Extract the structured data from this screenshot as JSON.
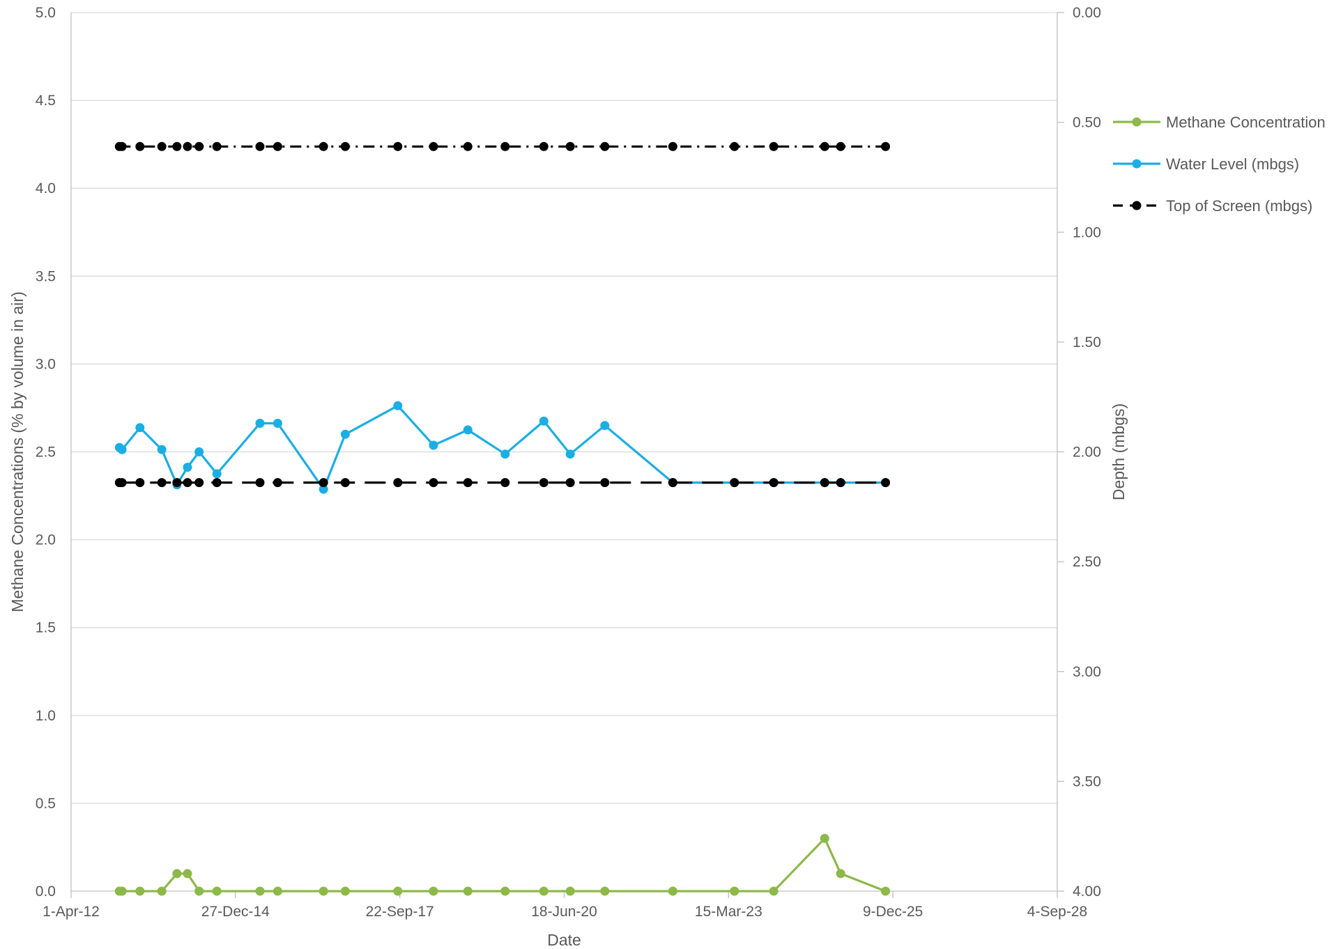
{
  "chart_data": {
    "type": "line",
    "x_axis": {
      "label": "Date",
      "ticks": [
        "1-Apr-12",
        "27-Dec-14",
        "22-Sep-17",
        "18-Jun-20",
        "15-Mar-23",
        "9-Dec-25",
        "4-Sep-28"
      ],
      "range": [
        "2012-04-01",
        "2028-09-04"
      ]
    },
    "y_axis_left": {
      "label": "Methane Concentrations (% by volume in air)",
      "ticks": [
        "0.0",
        "0.5",
        "1.0",
        "1.5",
        "2.0",
        "2.5",
        "3.0",
        "3.5",
        "4.0",
        "4.5",
        "5.0"
      ],
      "range": [
        0,
        5
      ]
    },
    "y_axis_right": {
      "label": "Depth (mbgs)",
      "ticks": [
        "0.00",
        "0.50",
        "1.00",
        "1.50",
        "2.00",
        "2.50",
        "3.00",
        "3.50",
        "4.00"
      ],
      "range": [
        0,
        4
      ],
      "inverted": true
    },
    "grid": true,
    "legend_position": "right",
    "series": [
      {
        "name": "Methane Concentration",
        "axis": "left",
        "color": "#8db84a",
        "style": "solid",
        "points": [
          [
            "2013-01-20",
            0
          ],
          [
            "2013-02-05",
            0
          ],
          [
            "2013-05-25",
            0
          ],
          [
            "2013-10-05",
            0
          ],
          [
            "2014-01-05",
            0.1
          ],
          [
            "2014-03-10",
            0.1
          ],
          [
            "2014-05-20",
            0
          ],
          [
            "2014-09-05",
            0
          ],
          [
            "2015-05-25",
            0
          ],
          [
            "2015-09-10",
            0
          ],
          [
            "2016-06-15",
            0
          ],
          [
            "2016-10-25",
            0
          ],
          [
            "2017-09-10",
            0
          ],
          [
            "2018-04-15",
            0
          ],
          [
            "2018-11-10",
            0
          ],
          [
            "2019-06-25",
            0
          ],
          [
            "2020-02-15",
            0
          ],
          [
            "2020-07-25",
            0
          ],
          [
            "2021-02-20",
            0
          ],
          [
            "2022-04-10",
            0
          ],
          [
            "2023-04-20",
            0
          ],
          [
            "2023-12-15",
            0
          ],
          [
            "2024-10-20",
            0.3
          ],
          [
            "2025-01-25",
            0.1
          ],
          [
            "2025-10-25",
            0
          ]
        ]
      },
      {
        "name": "Water Level (mbgs)",
        "axis": "right",
        "color": "#1aaee4",
        "style": "solid",
        "points": [
          [
            "2013-01-20",
            1.98
          ],
          [
            "2013-02-05",
            1.99
          ],
          [
            "2013-05-25",
            1.89
          ],
          [
            "2013-10-05",
            1.99
          ],
          [
            "2014-01-05",
            2.15
          ],
          [
            "2014-03-10",
            2.07
          ],
          [
            "2014-05-20",
            2.0
          ],
          [
            "2014-09-05",
            2.1
          ],
          [
            "2015-05-25",
            1.87
          ],
          [
            "2015-09-10",
            1.87
          ],
          [
            "2016-06-15",
            2.17
          ],
          [
            "2016-10-25",
            1.92
          ],
          [
            "2017-09-10",
            1.79
          ],
          [
            "2018-04-15",
            1.97
          ],
          [
            "2018-11-10",
            1.9
          ],
          [
            "2019-06-25",
            2.01
          ],
          [
            "2020-02-15",
            1.86
          ],
          [
            "2020-07-25",
            2.01
          ],
          [
            "2021-02-20",
            1.88
          ],
          [
            "2022-04-10",
            2.14
          ],
          [
            "2023-04-20",
            2.14
          ],
          [
            "2023-12-15",
            2.14
          ],
          [
            "2024-10-20",
            2.14
          ],
          [
            "2025-01-25",
            2.14
          ],
          [
            "2025-10-25",
            2.14
          ]
        ]
      },
      {
        "name": "Top of Screen (mbgs)",
        "axis": "right",
        "color": "#000000",
        "style": "dashed",
        "points": [
          [
            "2013-01-20",
            2.14
          ],
          [
            "2013-02-05",
            2.14
          ],
          [
            "2013-05-25",
            2.14
          ],
          [
            "2013-10-05",
            2.14
          ],
          [
            "2014-01-05",
            2.14
          ],
          [
            "2014-03-10",
            2.14
          ],
          [
            "2014-05-20",
            2.14
          ],
          [
            "2014-09-05",
            2.14
          ],
          [
            "2015-05-25",
            2.14
          ],
          [
            "2015-09-10",
            2.14
          ],
          [
            "2016-06-15",
            2.14
          ],
          [
            "2016-10-25",
            2.14
          ],
          [
            "2017-09-10",
            2.14
          ],
          [
            "2018-04-15",
            2.14
          ],
          [
            "2018-11-10",
            2.14
          ],
          [
            "2019-06-25",
            2.14
          ],
          [
            "2020-02-15",
            2.14
          ],
          [
            "2020-07-25",
            2.14
          ],
          [
            "2021-02-20",
            2.14
          ],
          [
            "2022-04-10",
            2.14
          ],
          [
            "2023-04-20",
            2.14
          ],
          [
            "2023-12-15",
            2.14
          ],
          [
            "2024-10-20",
            2.14
          ],
          [
            "2025-01-25",
            2.14
          ],
          [
            "2025-10-25",
            2.14
          ]
        ]
      },
      {
        "name": "",
        "axis": "right",
        "color": "#000000",
        "style": "dash-dot",
        "in_legend": false,
        "points": [
          [
            "2013-01-20",
            0.61
          ],
          [
            "2013-02-05",
            0.61
          ],
          [
            "2013-05-25",
            0.61
          ],
          [
            "2013-10-05",
            0.61
          ],
          [
            "2014-01-05",
            0.61
          ],
          [
            "2014-03-10",
            0.61
          ],
          [
            "2014-05-20",
            0.61
          ],
          [
            "2014-09-05",
            0.61
          ],
          [
            "2015-05-25",
            0.61
          ],
          [
            "2015-09-10",
            0.61
          ],
          [
            "2016-06-15",
            0.61
          ],
          [
            "2016-10-25",
            0.61
          ],
          [
            "2017-09-10",
            0.61
          ],
          [
            "2018-04-15",
            0.61
          ],
          [
            "2018-11-10",
            0.61
          ],
          [
            "2019-06-25",
            0.61
          ],
          [
            "2020-02-15",
            0.61
          ],
          [
            "2020-07-25",
            0.61
          ],
          [
            "2021-02-20",
            0.61
          ],
          [
            "2022-04-10",
            0.61
          ],
          [
            "2023-04-20",
            0.61
          ],
          [
            "2023-12-15",
            0.61
          ],
          [
            "2024-10-20",
            0.61
          ],
          [
            "2025-01-25",
            0.61
          ],
          [
            "2025-10-25",
            0.61
          ]
        ]
      }
    ]
  }
}
